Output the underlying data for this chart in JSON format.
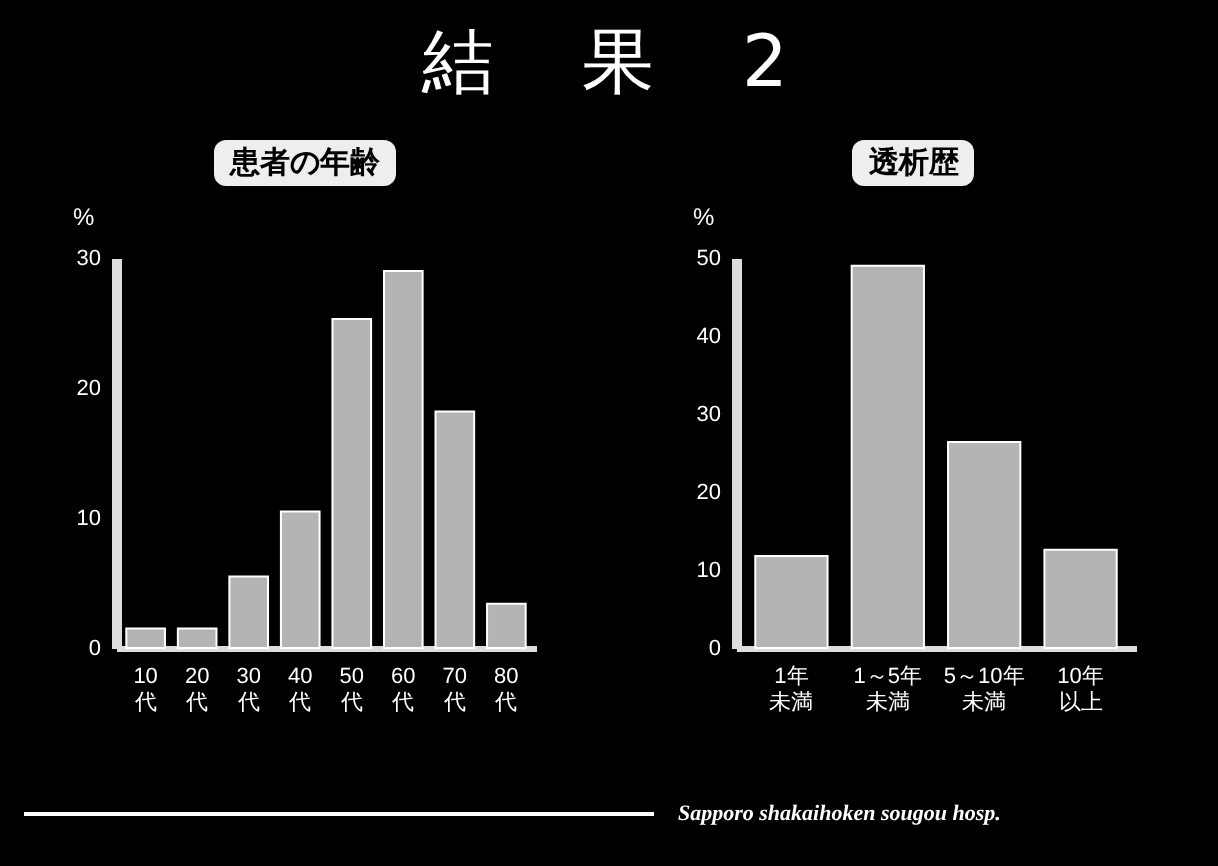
{
  "chart_data": [
    {
      "type": "bar",
      "title": "患者の年齢",
      "ylabel": "%",
      "categories": [
        "10代",
        "20代",
        "30代",
        "40代",
        "50代",
        "60代",
        "70代",
        "80代"
      ],
      "values": [
        1.5,
        1.5,
        5.5,
        10.5,
        25.3,
        29,
        18.2,
        3.4
      ],
      "color": "#b4b4b4",
      "ylim": [
        0,
        30
      ],
      "yticks": [
        0,
        10,
        20,
        30
      ],
      "annotations": [
        "結　果　2"
      ]
    },
    {
      "type": "bar",
      "title": "透析歴",
      "ylabel": "%",
      "categories": [
        "1年未満",
        "1～5年未満",
        "5～10年未満",
        "10年以上"
      ],
      "values": [
        11.8,
        49,
        26.4,
        12.6
      ],
      "color": "#b4b4b4",
      "ylim": [
        0,
        50
      ],
      "yticks": [
        0,
        10,
        20,
        30,
        40,
        50
      ],
      "annotations": [
        "Sapporo shakaihoken sougou hosp."
      ]
    }
  ]
}
